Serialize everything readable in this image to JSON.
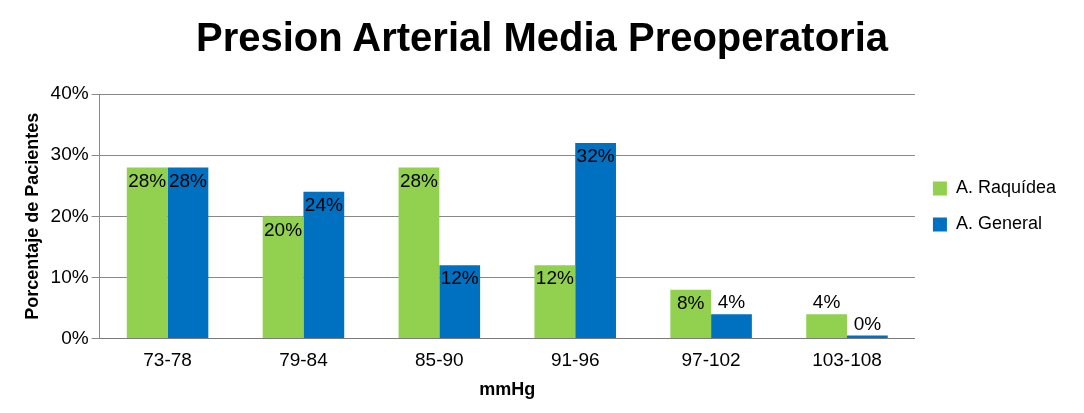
{
  "chart_data": {
    "type": "bar",
    "title": "Presion Arterial Media Preoperatoria",
    "xlabel": "mmHg",
    "ylabel": "Porcentaje de Pacientes",
    "categories": [
      "73-78",
      "79-84",
      "85-90",
      "91-96",
      "97-102",
      "103-108"
    ],
    "series": [
      {
        "name": "A. Raquídea",
        "color": "#92d050",
        "values": [
          28,
          20,
          28,
          12,
          8,
          4
        ],
        "value_labels": [
          "28%",
          "20%",
          "28%",
          "12%",
          "8%",
          "4%"
        ]
      },
      {
        "name": "A. General",
        "color": "#0070c0",
        "values": [
          28,
          24,
          12,
          32,
          4,
          0
        ],
        "value_labels": [
          "28%",
          "24%",
          "12%",
          "32%",
          "4%",
          "0%"
        ]
      }
    ],
    "ylim": [
      0,
      40
    ],
    "yticks": [
      {
        "value": 0,
        "label": "0%"
      },
      {
        "value": 10,
        "label": "10%"
      },
      {
        "value": 20,
        "label": "20%"
      },
      {
        "value": 30,
        "label": "30%"
      },
      {
        "value": 40,
        "label": "40%"
      }
    ],
    "grid": "y",
    "legend": "right"
  }
}
